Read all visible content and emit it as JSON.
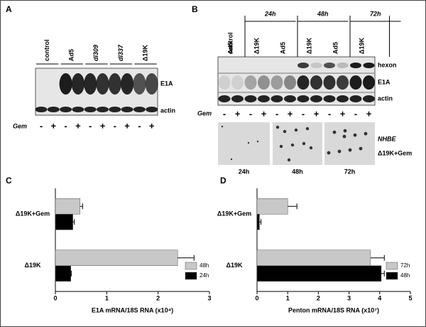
{
  "panels": {
    "a": {
      "label": "A",
      "lanes": [
        "control",
        "Ad5",
        "dl309",
        "dl337",
        "Δ19K"
      ],
      "rows": [
        "E1A",
        "actin"
      ],
      "gem_label": "Gem",
      "gem": [
        "-",
        "+",
        "-",
        "+",
        "-",
        "+",
        "-",
        "+",
        "-",
        "+"
      ]
    },
    "b": {
      "label": "B",
      "times": [
        "24h",
        "48h",
        "72h"
      ],
      "lanes": [
        "control",
        "Ad5",
        "Δ19K",
        "Ad5",
        "Δ19K",
        "Ad5",
        "Δ19K"
      ],
      "rows": [
        "hexon",
        "E1A",
        "actin"
      ],
      "gem_label": "Gem",
      "gem": [
        "-",
        "+",
        "-",
        "+",
        "-",
        "+",
        "-",
        "+",
        "-",
        "+",
        "-",
        "+"
      ],
      "image_times": [
        "24h",
        "48h",
        "72h"
      ],
      "image_labels": [
        "NHBE",
        "Δ19K+Gem"
      ]
    },
    "c": {
      "label": "C"
    },
    "d": {
      "label": "D"
    }
  },
  "chart_data": [
    {
      "type": "bar",
      "orientation": "horizontal",
      "categories": [
        "Δ19K+Gem",
        "Δ19K"
      ],
      "series": [
        {
          "name": "48h",
          "color": "#c8c8c8",
          "values": [
            0.48,
            2.38
          ],
          "errors": [
            0.05,
            0.32
          ]
        },
        {
          "name": "24h",
          "color": "#000000",
          "values": [
            0.34,
            0.3
          ],
          "errors": [
            0.03,
            0.01
          ]
        }
      ],
      "xlim": [
        0,
        3
      ],
      "xticks": [
        0,
        1,
        2,
        3
      ],
      "xlabel": "E1A mRNA/18S RNA (x10⁴)",
      "legend": "lower right"
    },
    {
      "type": "bar",
      "orientation": "horizontal",
      "categories": [
        "Δ19K+Gem",
        "Δ19K"
      ],
      "series": [
        {
          "name": "72h",
          "color": "#c8c8c8",
          "values": [
            1.0,
            3.7
          ],
          "errors": [
            0.3,
            0.45
          ]
        },
        {
          "name": "48h",
          "color": "#000000",
          "values": [
            0.08,
            4.05
          ],
          "errors": [
            0.05,
            0.1
          ]
        }
      ],
      "xlim": [
        0,
        5
      ],
      "xticks": [
        0,
        1,
        2,
        3,
        4,
        5
      ],
      "xlabel": "Penton mRNA/18S RNA (x10⁷)",
      "legend": "lower right"
    }
  ]
}
